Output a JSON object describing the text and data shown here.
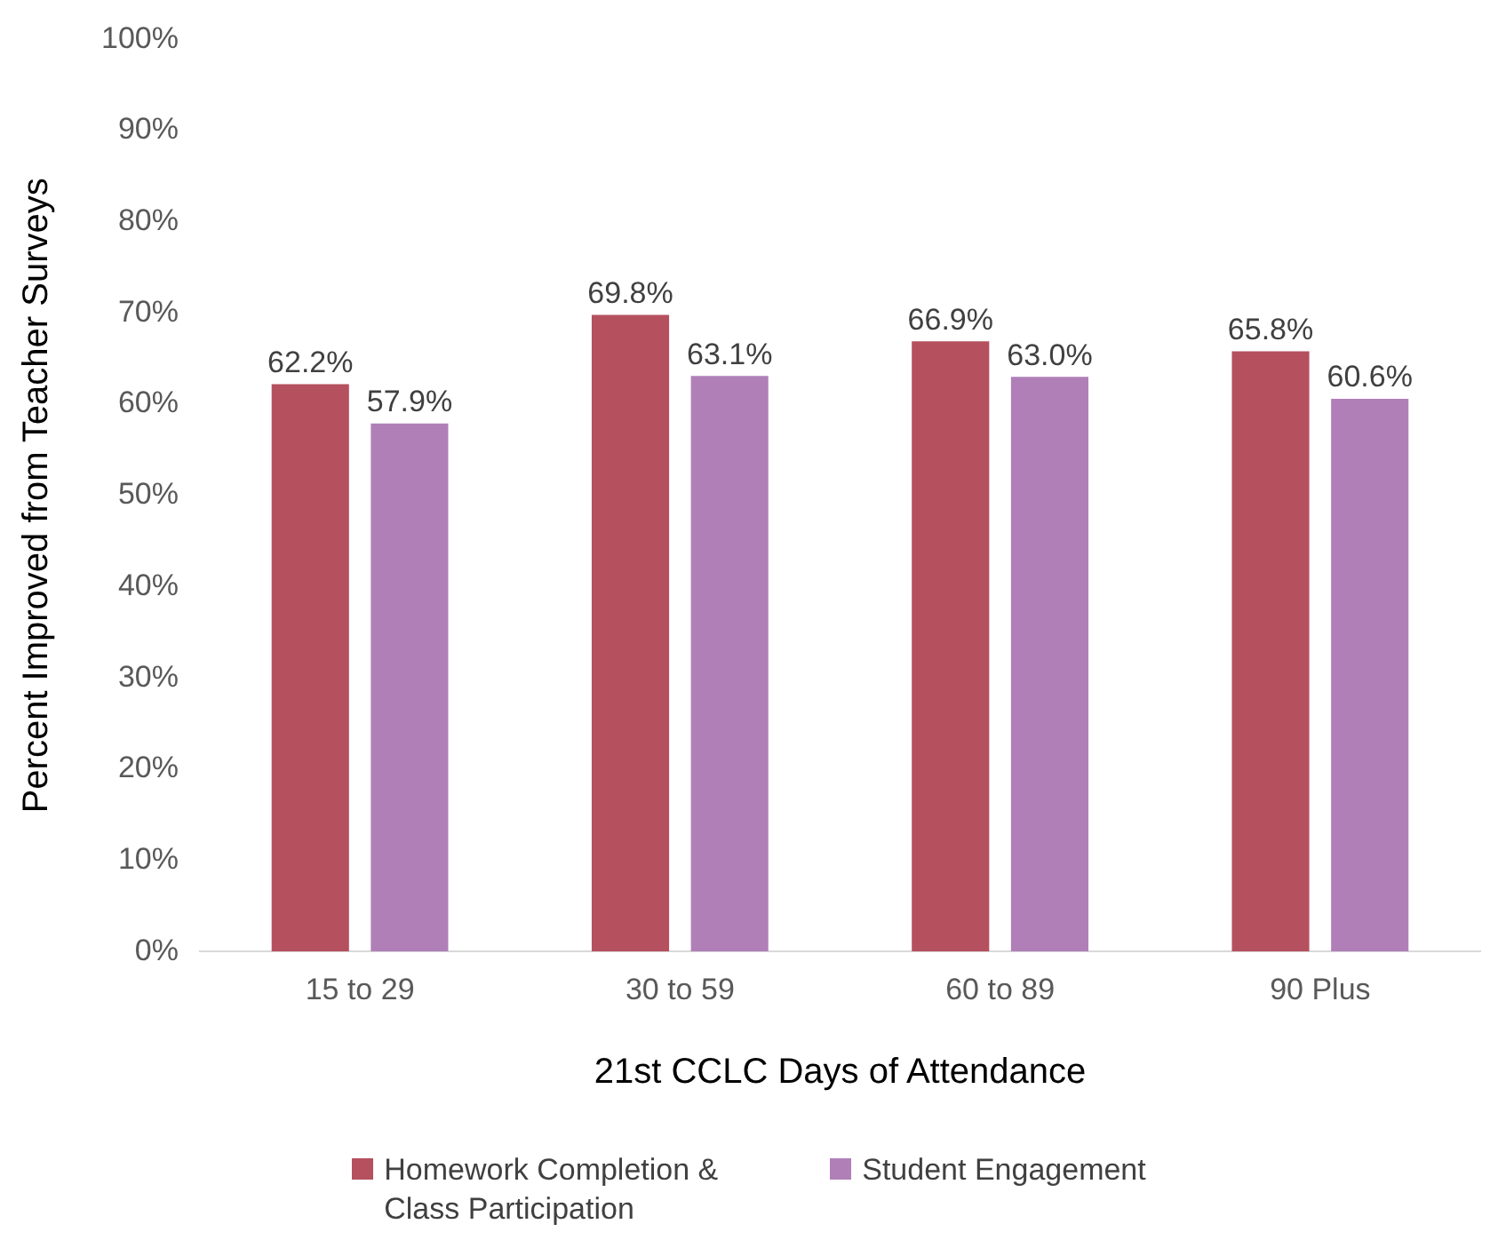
{
  "chart_data": {
    "type": "bar",
    "xlabel": "21st CCLC Days of Attendance",
    "ylabel": "Percent Improved from Teacher Surveys",
    "categories": [
      "15 to 29",
      "30 to 59",
      "60 to 89",
      "90 Plus"
    ],
    "series": [
      {
        "name": "Homework Completion & Class Participation",
        "color": "#b5505f",
        "values": [
          62.2,
          69.8,
          66.9,
          65.8
        ],
        "value_labels": [
          "62.2%",
          "69.8%",
          "66.9%",
          "65.8%"
        ]
      },
      {
        "name": "Student Engagement",
        "color": "#b07fb8",
        "values": [
          57.9,
          63.1,
          63.0,
          60.6
        ],
        "value_labels": [
          "57.9%",
          "63.1%",
          "63.0%",
          "60.6%"
        ]
      }
    ],
    "ylim": [
      0,
      100
    ],
    "yticks": [
      {
        "value": 0,
        "label": "0%"
      },
      {
        "value": 10,
        "label": "10%"
      },
      {
        "value": 20,
        "label": "20%"
      },
      {
        "value": 30,
        "label": "30%"
      },
      {
        "value": 40,
        "label": "40%"
      },
      {
        "value": 50,
        "label": "50%"
      },
      {
        "value": 60,
        "label": "60%"
      },
      {
        "value": 70,
        "label": "70%"
      },
      {
        "value": 80,
        "label": "80%"
      },
      {
        "value": 90,
        "label": "90%"
      },
      {
        "value": 100,
        "label": "100%"
      }
    ],
    "grid": false,
    "legend": "bottom"
  }
}
